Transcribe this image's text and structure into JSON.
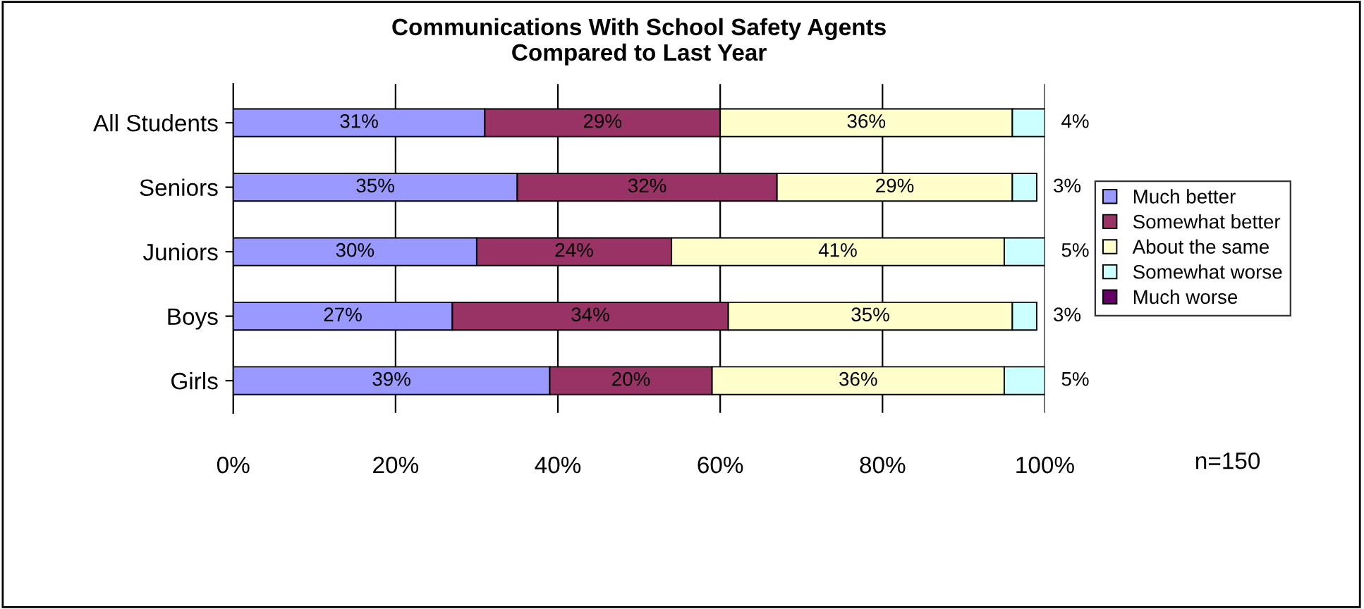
{
  "chart_data": {
    "type": "bar",
    "orientation": "horizontal",
    "stacked": true,
    "title": "Communications With School Safety Agents\nCompared to Last Year",
    "categories": [
      "All Students",
      "Seniors",
      "Juniors",
      "Boys",
      "Girls"
    ],
    "series": [
      {
        "name": "Much better",
        "color": "#9999ff",
        "values": [
          31,
          35,
          30,
          27,
          39
        ],
        "value_labels": [
          "31%",
          "35%",
          "30%",
          "27%",
          "39%"
        ]
      },
      {
        "name": "Somewhat better",
        "color": "#993366",
        "values": [
          29,
          32,
          24,
          34,
          20
        ],
        "value_labels": [
          "29%",
          "32%",
          "24%",
          "34%",
          "20%"
        ]
      },
      {
        "name": "About the same",
        "color": "#ffffcc",
        "values": [
          36,
          29,
          41,
          35,
          36
        ],
        "value_labels": [
          "36%",
          "29%",
          "41%",
          "35%",
          "36%"
        ]
      },
      {
        "name": "Somewhat worse",
        "color": "#ccffff",
        "values": [
          4,
          3,
          5,
          3,
          5
        ],
        "value_labels": [
          "4%",
          "3%",
          "5%",
          "3%",
          "5%"
        ]
      },
      {
        "name": "Much worse",
        "color": "#660066",
        "values": [
          0,
          0,
          0,
          0,
          0
        ]
      }
    ],
    "xlim": [
      0,
      100
    ],
    "xticks": [
      {
        "value": 0,
        "label": "0%"
      },
      {
        "value": 20,
        "label": "20%"
      },
      {
        "value": 40,
        "label": "40%"
      },
      {
        "value": 60,
        "label": "60%"
      },
      {
        "value": 80,
        "label": "80%"
      },
      {
        "value": 100,
        "label": "100%"
      }
    ],
    "grid": "x",
    "legend": "right",
    "annotations": [
      "n=150"
    ]
  }
}
